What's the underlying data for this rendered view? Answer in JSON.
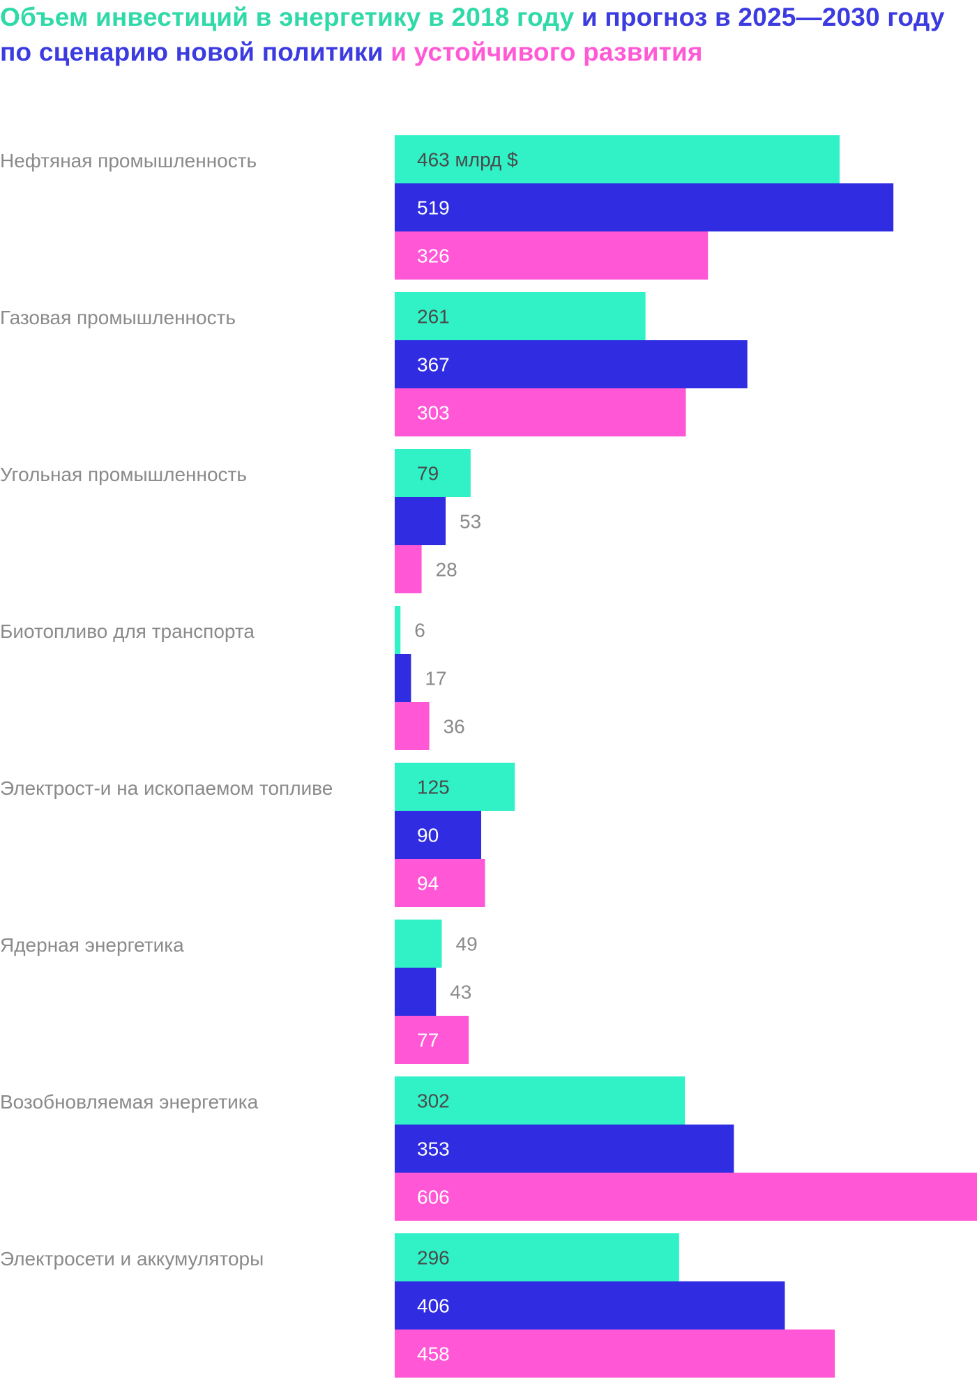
{
  "title_parts": [
    {
      "text": "Объем инвестиций в энергетику в 2018 году ",
      "color": "#2fd9a8"
    },
    {
      "text": "и прогноз в 2025—2030 году по сценарию новой политики ",
      "color": "#3b3be0"
    },
    {
      "text": "и устойчивого развития",
      "color": "#ff5ad6"
    }
  ],
  "chart_data": {
    "type": "bar",
    "orientation": "horizontal",
    "categories": [
      "Нефтяная промышленность",
      "Газовая промышленность",
      "Угольная промышленность",
      "Биотопливо для транспорта",
      "Электрост-и на ископаемом топливе",
      "Ядерная энергетика",
      "Возобновляемая энергетика",
      "Электросети и аккумуляторы"
    ],
    "series": [
      {
        "color": "#30f2c6",
        "values": [
          463,
          261,
          79,
          6,
          125,
          49,
          302,
          296
        ]
      },
      {
        "color": "#302ce2",
        "values": [
          519,
          367,
          53,
          17,
          90,
          43,
          353,
          406
        ]
      },
      {
        "color": "#ff57d6",
        "values": [
          326,
          303,
          28,
          36,
          94,
          77,
          606,
          458
        ]
      }
    ],
    "first_value_label": "463 млрд $",
    "unit": "млрд $",
    "xlim": [
      0,
      606
    ],
    "grid": false,
    "legend": "none"
  }
}
